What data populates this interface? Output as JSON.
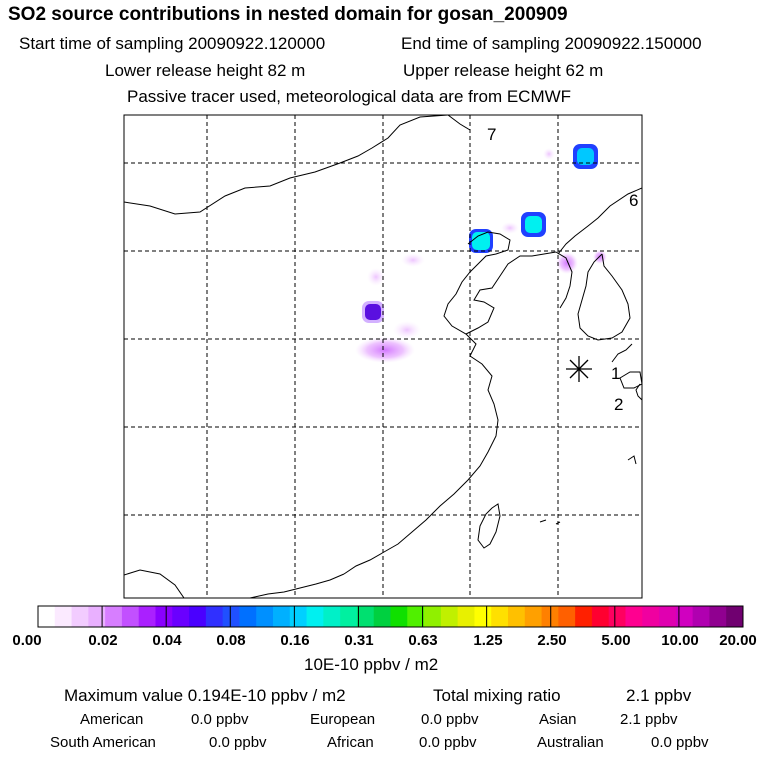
{
  "header": {
    "title": "SO2 source contributions in nested domain for gosan_200909",
    "start_label": "Start time of sampling 20090922.120000",
    "end_label": "End time of sampling 20090922.150000",
    "lower_label": "Lower release height   82 m",
    "upper_label": "Upper release height   62 m",
    "tracer_note": "Passive tracer used, meteorological data are from ECMWF"
  },
  "map": {
    "markers": [
      "7",
      "6",
      "1",
      "2"
    ],
    "receptor_icon": "asterisk-icon",
    "plumes": [
      {
        "level": "high",
        "color": "#00b4ff",
        "ring": "#2040ff"
      },
      {
        "level": "high",
        "color": "#00b4ff",
        "ring": "#2040ff"
      },
      {
        "level": "high",
        "color": "#00b4ff",
        "ring": "#2040ff"
      },
      {
        "level": "mid",
        "color": "#5a10e0"
      },
      {
        "level": "low",
        "color": "#e08cff"
      }
    ]
  },
  "colorbar": {
    "ticks": [
      "0.00",
      "0.02",
      "0.04",
      "0.08",
      "0.16",
      "0.31",
      "0.63",
      "1.25",
      "2.50",
      "5.00",
      "10.00",
      "20.00"
    ],
    "colors": [
      "#ffffff",
      "#fbeaff",
      "#f2ccff",
      "#e9b0ff",
      "#d77eff",
      "#c250ff",
      "#aa20ff",
      "#8a00ff",
      "#6a00ff",
      "#4a00ff",
      "#3030ff",
      "#2050ff",
      "#0070ff",
      "#0090ff",
      "#00b0ff",
      "#00d0ff",
      "#00f0f0",
      "#00f0c8",
      "#00f0a0",
      "#00e070",
      "#00d040",
      "#10e000",
      "#50f000",
      "#90f000",
      "#c0f000",
      "#e8f000",
      "#ffff00",
      "#ffe000",
      "#ffc000",
      "#ffa000",
      "#ff8000",
      "#ff6000",
      "#ff2000",
      "#ff0030",
      "#ff0060",
      "#ff0090",
      "#f000a0",
      "#e000b0",
      "#d000c0",
      "#b000b0",
      "#900090",
      "#700070"
    ],
    "unit": "10E-10 ppbv / m2"
  },
  "footer": {
    "max_value": "Maximum value  0.194E-10 ppbv / m2",
    "total_label": "Total mixing ratio",
    "total_value": "2.1 ppbv",
    "regions": [
      {
        "name": "American",
        "value": "0.0 ppbv"
      },
      {
        "name": "European",
        "value": "0.0 ppbv"
      },
      {
        "name": "Asian",
        "value": "2.1 ppbv"
      },
      {
        "name": "South American",
        "value": "0.0 ppbv"
      },
      {
        "name": "African",
        "value": "0.0 ppbv"
      },
      {
        "name": "Australian",
        "value": "0.0 ppbv"
      }
    ]
  }
}
